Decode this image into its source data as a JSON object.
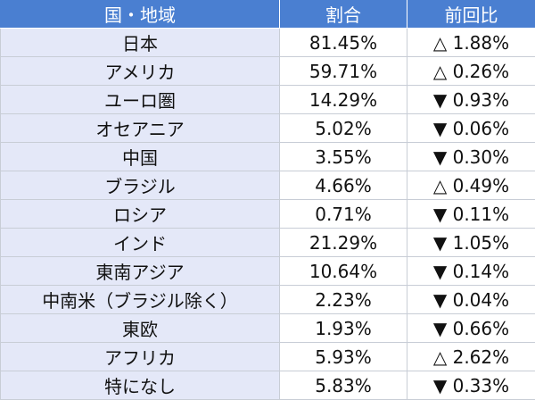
{
  "table": {
    "headers": {
      "region": "国・地域",
      "share": "割合",
      "change": "前回比"
    },
    "rows": [
      {
        "region": "日本",
        "share": "81.45%",
        "change": "△ 1.88%"
      },
      {
        "region": "アメリカ",
        "share": "59.71%",
        "change": "△ 0.26%"
      },
      {
        "region": "ユーロ圏",
        "share": "14.29%",
        "change": "▼ 0.93%"
      },
      {
        "region": "オセアニア",
        "share": "5.02%",
        "change": "▼ 0.06%"
      },
      {
        "region": "中国",
        "share": "3.55%",
        "change": "▼ 0.30%"
      },
      {
        "region": "ブラジル",
        "share": "4.66%",
        "change": "△ 0.49%"
      },
      {
        "region": "ロシア",
        "share": "0.71%",
        "change": "▼ 0.11%"
      },
      {
        "region": "インド",
        "share": "21.29%",
        "change": "▼ 1.05%"
      },
      {
        "region": "東南アジア",
        "share": "10.64%",
        "change": "▼ 0.14%"
      },
      {
        "region": "中南米（ブラジル除く）",
        "share": "2.23%",
        "change": "▼ 0.04%"
      },
      {
        "region": "東欧",
        "share": "1.93%",
        "change": "▼ 0.66%"
      },
      {
        "region": "アフリカ",
        "share": "5.93%",
        "change": "△ 2.62%"
      },
      {
        "region": "特になし",
        "share": "5.83%",
        "change": "▼ 0.33%"
      }
    ]
  },
  "colors": {
    "header_bg": "#4a7fd1",
    "header_text": "#ffffff",
    "region_cell_bg": "#e4e8f8",
    "border": "#c8cdd6"
  }
}
